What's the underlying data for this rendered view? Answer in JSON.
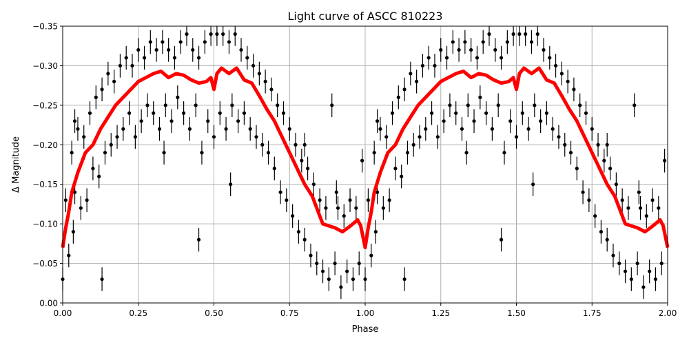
{
  "chart_data": {
    "type": "scatter",
    "title": "Light curve of ASCC 810223",
    "xlabel": "Phase",
    "ylabel": "Δ Magnitude",
    "xlim": [
      0,
      2
    ],
    "ylim": [
      0,
      -0.35
    ],
    "y_inverted": true,
    "grid": true,
    "x_ticks": [
      "0.00",
      "0.25",
      "0.50",
      "0.75",
      "1.00",
      "1.25",
      "1.50",
      "1.75",
      "2.00"
    ],
    "x_tick_values": [
      0,
      0.25,
      0.5,
      0.75,
      1,
      1.25,
      1.5,
      1.75,
      2
    ],
    "y_ticks": [
      "0.00",
      "−0.05",
      "−0.10",
      "−0.15",
      "−0.20",
      "−0.25",
      "−0.30",
      "−0.35"
    ],
    "y_tick_values": [
      0,
      -0.05,
      -0.1,
      -0.15,
      -0.2,
      -0.25,
      -0.3,
      -0.35
    ],
    "colors": {
      "points": "#000000",
      "binned_curve": "#ff0000",
      "grid": "#b0b0b0"
    },
    "series": [
      {
        "kind": "errorbar-points",
        "errorbar": 0.015,
        "points": [
          [
            0.0,
            -0.03
          ],
          [
            0.01,
            -0.13
          ],
          [
            0.02,
            -0.06
          ],
          [
            0.03,
            -0.19
          ],
          [
            0.04,
            -0.14
          ],
          [
            0.05,
            -0.22
          ],
          [
            0.06,
            -0.12
          ],
          [
            0.07,
            -0.21
          ],
          [
            0.08,
            -0.13
          ],
          [
            0.09,
            -0.24
          ],
          [
            0.1,
            -0.17
          ],
          [
            0.11,
            -0.26
          ],
          [
            0.12,
            -0.16
          ],
          [
            0.13,
            -0.27
          ],
          [
            0.14,
            -0.19
          ],
          [
            0.15,
            -0.29
          ],
          [
            0.16,
            -0.2
          ],
          [
            0.17,
            -0.28
          ],
          [
            0.18,
            -0.21
          ],
          [
            0.19,
            -0.3
          ],
          [
            0.2,
            -0.22
          ],
          [
            0.21,
            -0.31
          ],
          [
            0.22,
            -0.24
          ],
          [
            0.23,
            -0.3
          ],
          [
            0.24,
            -0.21
          ],
          [
            0.25,
            -0.32
          ],
          [
            0.26,
            -0.23
          ],
          [
            0.27,
            -0.31
          ],
          [
            0.28,
            -0.25
          ],
          [
            0.29,
            -0.33
          ],
          [
            0.3,
            -0.24
          ],
          [
            0.31,
            -0.32
          ],
          [
            0.32,
            -0.22
          ],
          [
            0.33,
            -0.33
          ],
          [
            0.34,
            -0.25
          ],
          [
            0.35,
            -0.32
          ],
          [
            0.36,
            -0.23
          ],
          [
            0.37,
            -0.31
          ],
          [
            0.38,
            -0.26
          ],
          [
            0.39,
            -0.33
          ],
          [
            0.4,
            -0.24
          ],
          [
            0.41,
            -0.34
          ],
          [
            0.42,
            -0.22
          ],
          [
            0.43,
            -0.32
          ],
          [
            0.44,
            -0.25
          ],
          [
            0.45,
            -0.31
          ],
          [
            0.46,
            -0.19
          ],
          [
            0.47,
            -0.33
          ],
          [
            0.48,
            -0.23
          ],
          [
            0.49,
            -0.34
          ],
          [
            0.5,
            -0.21
          ],
          [
            0.51,
            -0.34
          ],
          [
            0.52,
            -0.24
          ],
          [
            0.53,
            -0.34
          ],
          [
            0.54,
            -0.22
          ],
          [
            0.55,
            -0.33
          ],
          [
            0.56,
            -0.25
          ],
          [
            0.57,
            -0.34
          ],
          [
            0.58,
            -0.23
          ],
          [
            0.59,
            -0.32
          ],
          [
            0.6,
            -0.24
          ],
          [
            0.61,
            -0.31
          ],
          [
            0.62,
            -0.22
          ],
          [
            0.63,
            -0.3
          ],
          [
            0.64,
            -0.21
          ],
          [
            0.65,
            -0.29
          ],
          [
            0.66,
            -0.2
          ],
          [
            0.67,
            -0.28
          ],
          [
            0.68,
            -0.19
          ],
          [
            0.69,
            -0.27
          ],
          [
            0.7,
            -0.17
          ],
          [
            0.71,
            -0.25
          ],
          [
            0.72,
            -0.14
          ],
          [
            0.73,
            -0.24
          ],
          [
            0.74,
            -0.13
          ],
          [
            0.75,
            -0.22
          ],
          [
            0.76,
            -0.11
          ],
          [
            0.77,
            -0.2
          ],
          [
            0.78,
            -0.09
          ],
          [
            0.79,
            -0.18
          ],
          [
            0.8,
            -0.08
          ],
          [
            0.81,
            -0.17
          ],
          [
            0.82,
            -0.06
          ],
          [
            0.83,
            -0.15
          ],
          [
            0.84,
            -0.05
          ],
          [
            0.85,
            -0.13
          ],
          [
            0.86,
            -0.04
          ],
          [
            0.87,
            -0.12
          ],
          [
            0.88,
            -0.03
          ],
          [
            0.89,
            -0.25
          ],
          [
            0.9,
            -0.05
          ],
          [
            0.91,
            -0.12
          ],
          [
            0.92,
            -0.02
          ],
          [
            0.93,
            -0.11
          ],
          [
            0.94,
            -0.04
          ],
          [
            0.95,
            -0.13
          ],
          [
            0.96,
            -0.03
          ],
          [
            0.97,
            -0.12
          ],
          [
            0.98,
            -0.05
          ],
          [
            0.99,
            -0.18
          ],
          [
            0.45,
            -0.08
          ],
          [
            0.13,
            -0.03
          ],
          [
            0.04,
            -0.23
          ],
          [
            0.335,
            -0.19
          ],
          [
            0.555,
            -0.15
          ],
          [
            0.8,
            -0.2
          ],
          [
            0.905,
            -0.14
          ],
          [
            0.035,
            -0.09
          ]
        ]
      },
      {
        "kind": "binned-line",
        "points": [
          [
            0.0,
            -0.07
          ],
          [
            0.01,
            -0.095
          ],
          [
            0.02,
            -0.115
          ],
          [
            0.03,
            -0.14
          ],
          [
            0.05,
            -0.165
          ],
          [
            0.075,
            -0.19
          ],
          [
            0.1,
            -0.2
          ],
          [
            0.125,
            -0.22
          ],
          [
            0.15,
            -0.235
          ],
          [
            0.175,
            -0.25
          ],
          [
            0.2,
            -0.26
          ],
          [
            0.225,
            -0.27
          ],
          [
            0.25,
            -0.28
          ],
          [
            0.275,
            -0.285
          ],
          [
            0.3,
            -0.29
          ],
          [
            0.325,
            -0.293
          ],
          [
            0.35,
            -0.285
          ],
          [
            0.375,
            -0.29
          ],
          [
            0.4,
            -0.288
          ],
          [
            0.425,
            -0.282
          ],
          [
            0.45,
            -0.278
          ],
          [
            0.475,
            -0.28
          ],
          [
            0.49,
            -0.285
          ],
          [
            0.5,
            -0.27
          ],
          [
            0.51,
            -0.29
          ],
          [
            0.525,
            -0.297
          ],
          [
            0.55,
            -0.29
          ],
          [
            0.575,
            -0.297
          ],
          [
            0.6,
            -0.282
          ],
          [
            0.625,
            -0.278
          ],
          [
            0.65,
            -0.262
          ],
          [
            0.675,
            -0.245
          ],
          [
            0.7,
            -0.23
          ],
          [
            0.725,
            -0.21
          ],
          [
            0.75,
            -0.19
          ],
          [
            0.775,
            -0.17
          ],
          [
            0.8,
            -0.15
          ],
          [
            0.825,
            -0.135
          ],
          [
            0.85,
            -0.11
          ],
          [
            0.86,
            -0.1
          ],
          [
            0.875,
            -0.098
          ],
          [
            0.9,
            -0.095
          ],
          [
            0.925,
            -0.09
          ],
          [
            0.95,
            -0.097
          ],
          [
            0.975,
            -0.105
          ],
          [
            0.985,
            -0.098
          ],
          [
            1.0,
            -0.07
          ]
        ]
      }
    ]
  }
}
